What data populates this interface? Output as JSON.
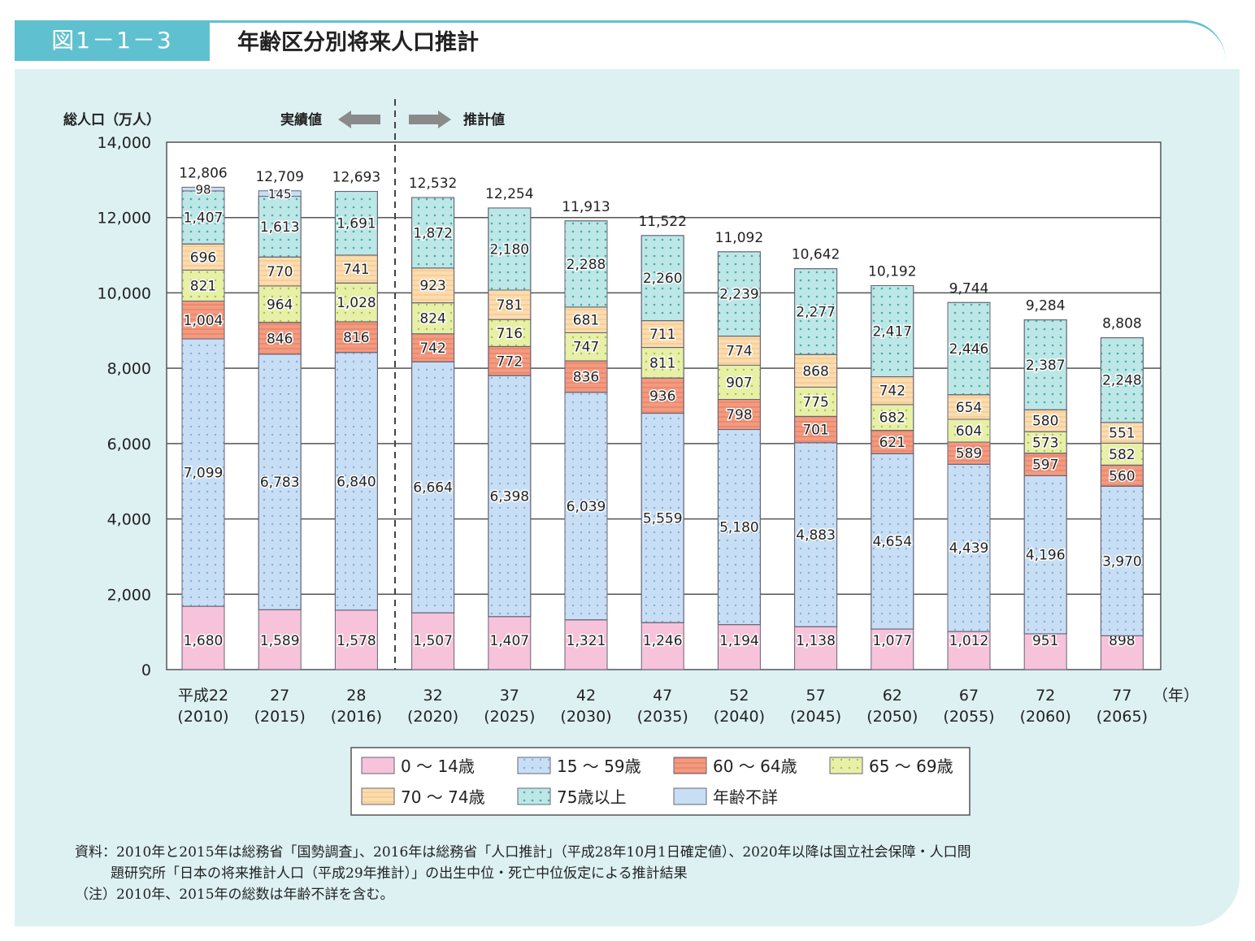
{
  "header": {
    "figure_number": "図1－1－3",
    "title": "年齢区分別将来人口推計"
  },
  "chart_data": {
    "type": "bar",
    "stacked": true,
    "ylabel": "総人口（万人）",
    "xunit": "（年）",
    "ylim": [
      0,
      14000
    ],
    "yticks": [
      "0",
      "2,000",
      "4,000",
      "6,000",
      "8,000",
      "10,000",
      "12,000",
      "14,000"
    ],
    "ytick_values": [
      0,
      2000,
      4000,
      6000,
      8000,
      10000,
      12000,
      14000
    ],
    "grid": true,
    "actual_label": "実績値",
    "projection_label": "推計値",
    "categories": [
      {
        "era": "平成22",
        "year": "(2010)"
      },
      {
        "era": "27",
        "year": "(2015)"
      },
      {
        "era": "28",
        "year": "(2016)"
      },
      {
        "era": "32",
        "year": "(2020)"
      },
      {
        "era": "37",
        "year": "(2025)"
      },
      {
        "era": "42",
        "year": "(2030)"
      },
      {
        "era": "47",
        "year": "(2035)"
      },
      {
        "era": "52",
        "year": "(2040)"
      },
      {
        "era": "57",
        "year": "(2045)"
      },
      {
        "era": "62",
        "year": "(2050)"
      },
      {
        "era": "67",
        "year": "(2055)"
      },
      {
        "era": "72",
        "year": "(2060)"
      },
      {
        "era": "77",
        "year": "(2065)"
      }
    ],
    "series": [
      {
        "name": "0 ～ 14歳",
        "color": "#f7c3da",
        "values": [
          1680,
          1589,
          1578,
          1507,
          1407,
          1321,
          1246,
          1194,
          1138,
          1077,
          1012,
          951,
          898
        ]
      },
      {
        "name": "15 ～ 59歳",
        "color": "#c8def5",
        "values": [
          7099,
          6783,
          6840,
          6664,
          6398,
          6039,
          5559,
          5180,
          4883,
          4654,
          4439,
          4196,
          3970
        ]
      },
      {
        "name": "60 ～ 64歳",
        "color": "#f39a7f",
        "values": [
          1004,
          846,
          816,
          742,
          772,
          836,
          936,
          798,
          701,
          621,
          589,
          597,
          560
        ]
      },
      {
        "name": "65 ～ 69歳",
        "color": "#e7f0a6",
        "values": [
          821,
          964,
          1028,
          824,
          716,
          747,
          811,
          907,
          775,
          682,
          604,
          573,
          582
        ]
      },
      {
        "name": "70 ～ 74歳",
        "color": "#fcdcae",
        "values": [
          696,
          770,
          741,
          923,
          781,
          681,
          711,
          774,
          868,
          742,
          654,
          580,
          551
        ]
      },
      {
        "name": "75歳以上",
        "color": "#bde7e6",
        "values": [
          1407,
          1613,
          1691,
          1872,
          2180,
          2288,
          2260,
          2239,
          2277,
          2417,
          2446,
          2387,
          2248
        ]
      },
      {
        "name": "年齢不詳",
        "color": "#c8def5",
        "values": [
          98,
          145,
          null,
          null,
          null,
          null,
          null,
          null,
          null,
          null,
          null,
          null,
          null
        ]
      }
    ],
    "totals": [
      "12,806",
      "12,709",
      "12,693",
      "12,532",
      "12,254",
      "11,913",
      "11,522",
      "11,092",
      "10,642",
      "10,192",
      "9,744",
      "9,284",
      "8,808"
    ],
    "legend_position": "bottom"
  },
  "notes": [
    "資料：2010年と2015年は総務省「国勢調査」、2016年は総務省「人口推計」（平成28年10月1日確定値）、2020年以降は国立社会保障・人口問",
    "題研究所「日本の将来推計人口（平成29年推計）」の出生中位・死亡中位仮定による推計結果",
    "（注）2010年、2015年の総数は年齢不詳を含む。"
  ]
}
